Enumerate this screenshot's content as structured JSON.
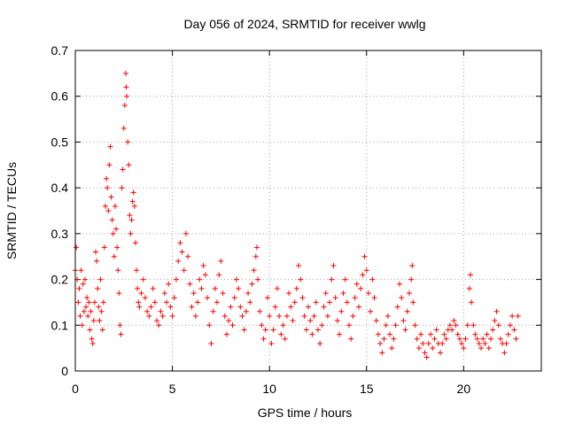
{
  "chart_data": {
    "type": "scatter",
    "title": "Day 056 of 2024, SRMTID for receiver wwlg",
    "xlabel": "GPS time / hours",
    "ylabel": "SRMTID / TECUs",
    "xlim": [
      0,
      24
    ],
    "ylim": [
      0,
      0.7
    ],
    "x_ticks": [
      0,
      5,
      10,
      15,
      20
    ],
    "y_ticks": [
      0,
      0.1,
      0.2,
      0.3,
      0.4,
      0.5,
      0.6,
      0.7
    ],
    "x_tick_labels": [
      "0",
      "5",
      "10",
      "15",
      "20"
    ],
    "y_tick_labels": [
      "0",
      "0.1",
      "0.2",
      "0.3",
      "0.4",
      "0.5",
      "0.6",
      "0.7"
    ],
    "grid": true,
    "marker": "+",
    "series": [
      {
        "name": "SRMTID",
        "color": "#ff0000",
        "points": [
          [
            0.0,
            0.22
          ],
          [
            0.05,
            0.27
          ],
          [
            0.1,
            0.2
          ],
          [
            0.15,
            0.15
          ],
          [
            0.2,
            0.18
          ],
          [
            0.25,
            0.12
          ],
          [
            0.3,
            0.22
          ],
          [
            0.35,
            0.1
          ],
          [
            0.4,
            0.19
          ],
          [
            0.45,
            0.13
          ],
          [
            0.5,
            0.2
          ],
          [
            0.55,
            0.14
          ],
          [
            0.6,
            0.16
          ],
          [
            0.65,
            0.12
          ],
          [
            0.7,
            0.15
          ],
          [
            0.75,
            0.09
          ],
          [
            0.8,
            0.13
          ],
          [
            0.85,
            0.07
          ],
          [
            0.9,
            0.06
          ],
          [
            0.95,
            0.11
          ],
          [
            1.0,
            0.15
          ],
          [
            1.05,
            0.26
          ],
          [
            1.1,
            0.24
          ],
          [
            1.15,
            0.18
          ],
          [
            1.2,
            0.14
          ],
          [
            1.25,
            0.11
          ],
          [
            1.3,
            0.2
          ],
          [
            1.35,
            0.13
          ],
          [
            1.4,
            0.09
          ],
          [
            1.45,
            0.15
          ],
          [
            1.5,
            0.27
          ],
          [
            1.55,
            0.36
          ],
          [
            1.6,
            0.42
          ],
          [
            1.65,
            0.4
          ],
          [
            1.7,
            0.35
          ],
          [
            1.75,
            0.45
          ],
          [
            1.8,
            0.49
          ],
          [
            1.85,
            0.38
          ],
          [
            1.9,
            0.33
          ],
          [
            1.95,
            0.3
          ],
          [
            2.0,
            0.25
          ],
          [
            2.05,
            0.36
          ],
          [
            2.1,
            0.31
          ],
          [
            2.15,
            0.27
          ],
          [
            2.2,
            0.22
          ],
          [
            2.25,
            0.17
          ],
          [
            2.3,
            0.1
          ],
          [
            2.35,
            0.08
          ],
          [
            2.4,
            0.4
          ],
          [
            2.45,
            0.44
          ],
          [
            2.5,
            0.53
          ],
          [
            2.55,
            0.58
          ],
          [
            2.6,
            0.65
          ],
          [
            2.62,
            0.62
          ],
          [
            2.65,
            0.6
          ],
          [
            2.7,
            0.5
          ],
          [
            2.75,
            0.45
          ],
          [
            2.8,
            0.34
          ],
          [
            2.85,
            0.3
          ],
          [
            2.9,
            0.33
          ],
          [
            2.95,
            0.37
          ],
          [
            3.0,
            0.39
          ],
          [
            3.05,
            0.36
          ],
          [
            3.1,
            0.28
          ],
          [
            3.15,
            0.22
          ],
          [
            3.2,
            0.18
          ],
          [
            3.25,
            0.15
          ],
          [
            3.3,
            0.14
          ],
          [
            3.4,
            0.17
          ],
          [
            3.5,
            0.2
          ],
          [
            3.6,
            0.16
          ],
          [
            3.7,
            0.13
          ],
          [
            3.8,
            0.12
          ],
          [
            3.9,
            0.14
          ],
          [
            4.0,
            0.18
          ],
          [
            4.1,
            0.15
          ],
          [
            4.2,
            0.11
          ],
          [
            4.3,
            0.1
          ],
          [
            4.4,
            0.13
          ],
          [
            4.5,
            0.12
          ],
          [
            4.6,
            0.17
          ],
          [
            4.7,
            0.15
          ],
          [
            4.8,
            0.19
          ],
          [
            4.9,
            0.14
          ],
          [
            5.0,
            0.12
          ],
          [
            5.1,
            0.16
          ],
          [
            5.2,
            0.2
          ],
          [
            5.3,
            0.24
          ],
          [
            5.4,
            0.28
          ],
          [
            5.5,
            0.26
          ],
          [
            5.6,
            0.22
          ],
          [
            5.7,
            0.3
          ],
          [
            5.8,
            0.25
          ],
          [
            5.9,
            0.19
          ],
          [
            6.0,
            0.14
          ],
          [
            6.1,
            0.17
          ],
          [
            6.2,
            0.12
          ],
          [
            6.3,
            0.15
          ],
          [
            6.4,
            0.2
          ],
          [
            6.5,
            0.18
          ],
          [
            6.6,
            0.23
          ],
          [
            6.7,
            0.21
          ],
          [
            6.8,
            0.16
          ],
          [
            6.9,
            0.1
          ],
          [
            7.0,
            0.06
          ],
          [
            7.1,
            0.13
          ],
          [
            7.2,
            0.18
          ],
          [
            7.3,
            0.15
          ],
          [
            7.4,
            0.21
          ],
          [
            7.5,
            0.24
          ],
          [
            7.6,
            0.17
          ],
          [
            7.7,
            0.12
          ],
          [
            7.8,
            0.08
          ],
          [
            7.9,
            0.11
          ],
          [
            8.0,
            0.14
          ],
          [
            8.1,
            0.1
          ],
          [
            8.2,
            0.16
          ],
          [
            8.3,
            0.2
          ],
          [
            8.4,
            0.18
          ],
          [
            8.5,
            0.14
          ],
          [
            8.6,
            0.12
          ],
          [
            8.7,
            0.09
          ],
          [
            8.8,
            0.13
          ],
          [
            8.9,
            0.17
          ],
          [
            9.0,
            0.15
          ],
          [
            9.1,
            0.19
          ],
          [
            9.2,
            0.22
          ],
          [
            9.3,
            0.25
          ],
          [
            9.35,
            0.27
          ],
          [
            9.4,
            0.2
          ],
          [
            9.5,
            0.13
          ],
          [
            9.6,
            0.1
          ],
          [
            9.7,
            0.07
          ],
          [
            9.8,
            0.09
          ],
          [
            9.9,
            0.16
          ],
          [
            10.0,
            0.12
          ],
          [
            10.1,
            0.06
          ],
          [
            10.2,
            0.09
          ],
          [
            10.3,
            0.14
          ],
          [
            10.4,
            0.18
          ],
          [
            10.5,
            0.12
          ],
          [
            10.6,
            0.08
          ],
          [
            10.7,
            0.1
          ],
          [
            10.8,
            0.07
          ],
          [
            10.9,
            0.12
          ],
          [
            11.0,
            0.17
          ],
          [
            11.1,
            0.14
          ],
          [
            11.2,
            0.11
          ],
          [
            11.3,
            0.15
          ],
          [
            11.4,
            0.18
          ],
          [
            11.5,
            0.23
          ],
          [
            11.6,
            0.2
          ],
          [
            11.7,
            0.16
          ],
          [
            11.8,
            0.12
          ],
          [
            11.9,
            0.09
          ],
          [
            12.0,
            0.14
          ],
          [
            12.1,
            0.11
          ],
          [
            12.2,
            0.08
          ],
          [
            12.3,
            0.12
          ],
          [
            12.4,
            0.15
          ],
          [
            12.5,
            0.09
          ],
          [
            12.6,
            0.06
          ],
          [
            12.7,
            0.1
          ],
          [
            12.8,
            0.14
          ],
          [
            12.9,
            0.17
          ],
          [
            13.0,
            0.12
          ],
          [
            13.1,
            0.15
          ],
          [
            13.2,
            0.2
          ],
          [
            13.3,
            0.23
          ],
          [
            13.4,
            0.16
          ],
          [
            13.5,
            0.11
          ],
          [
            13.6,
            0.08
          ],
          [
            13.7,
            0.13
          ],
          [
            13.8,
            0.17
          ],
          [
            13.9,
            0.2
          ],
          [
            14.0,
            0.15
          ],
          [
            14.1,
            0.1
          ],
          [
            14.2,
            0.07
          ],
          [
            14.3,
            0.12
          ],
          [
            14.4,
            0.16
          ],
          [
            14.5,
            0.19
          ],
          [
            14.6,
            0.14
          ],
          [
            14.7,
            0.18
          ],
          [
            14.8,
            0.21
          ],
          [
            14.9,
            0.25
          ],
          [
            15.0,
            0.22
          ],
          [
            15.1,
            0.17
          ],
          [
            15.2,
            0.13
          ],
          [
            15.3,
            0.2
          ],
          [
            15.4,
            0.16
          ],
          [
            15.5,
            0.11
          ],
          [
            15.6,
            0.08
          ],
          [
            15.7,
            0.06
          ],
          [
            15.8,
            0.04
          ],
          [
            15.9,
            0.07
          ],
          [
            16.0,
            0.1
          ],
          [
            16.1,
            0.12
          ],
          [
            16.2,
            0.08
          ],
          [
            16.3,
            0.05
          ],
          [
            16.4,
            0.07
          ],
          [
            16.5,
            0.1
          ],
          [
            16.6,
            0.14
          ],
          [
            16.7,
            0.19
          ],
          [
            16.8,
            0.16
          ],
          [
            16.9,
            0.11
          ],
          [
            17.0,
            0.09
          ],
          [
            17.1,
            0.13
          ],
          [
            17.2,
            0.17
          ],
          [
            17.3,
            0.2
          ],
          [
            17.35,
            0.23
          ],
          [
            17.4,
            0.15
          ],
          [
            17.5,
            0.1
          ],
          [
            17.6,
            0.07
          ],
          [
            17.7,
            0.05
          ],
          [
            17.8,
            0.08
          ],
          [
            17.9,
            0.06
          ],
          [
            18.0,
            0.04
          ],
          [
            18.1,
            0.03
          ],
          [
            18.2,
            0.06
          ],
          [
            18.3,
            0.08
          ],
          [
            18.4,
            0.05
          ],
          [
            18.5,
            0.07
          ],
          [
            18.6,
            0.09
          ],
          [
            18.7,
            0.06
          ],
          [
            18.8,
            0.04
          ],
          [
            18.9,
            0.06
          ],
          [
            19.0,
            0.08
          ],
          [
            19.1,
            0.07
          ],
          [
            19.2,
            0.09
          ],
          [
            19.3,
            0.1
          ],
          [
            19.4,
            0.09
          ],
          [
            19.5,
            0.11
          ],
          [
            19.6,
            0.1
          ],
          [
            19.7,
            0.08
          ],
          [
            19.8,
            0.07
          ],
          [
            19.9,
            0.06
          ],
          [
            20.0,
            0.05
          ],
          [
            20.1,
            0.07
          ],
          [
            20.2,
            0.1
          ],
          [
            20.3,
            0.18
          ],
          [
            20.35,
            0.21
          ],
          [
            20.4,
            0.15
          ],
          [
            20.5,
            0.1
          ],
          [
            20.6,
            0.08
          ],
          [
            20.7,
            0.07
          ],
          [
            20.8,
            0.06
          ],
          [
            20.9,
            0.05
          ],
          [
            21.0,
            0.07
          ],
          [
            21.1,
            0.06
          ],
          [
            21.2,
            0.08
          ],
          [
            21.3,
            0.05
          ],
          [
            21.4,
            0.07
          ],
          [
            21.5,
            0.09
          ],
          [
            21.6,
            0.11
          ],
          [
            21.7,
            0.13
          ],
          [
            21.8,
            0.1
          ],
          [
            21.9,
            0.07
          ],
          [
            22.0,
            0.06
          ],
          [
            22.1,
            0.04
          ],
          [
            22.2,
            0.06
          ],
          [
            22.3,
            0.08
          ],
          [
            22.4,
            0.1
          ],
          [
            22.5,
            0.12
          ],
          [
            22.6,
            0.09
          ],
          [
            22.7,
            0.07
          ],
          [
            22.8,
            0.12
          ]
        ]
      }
    ]
  }
}
